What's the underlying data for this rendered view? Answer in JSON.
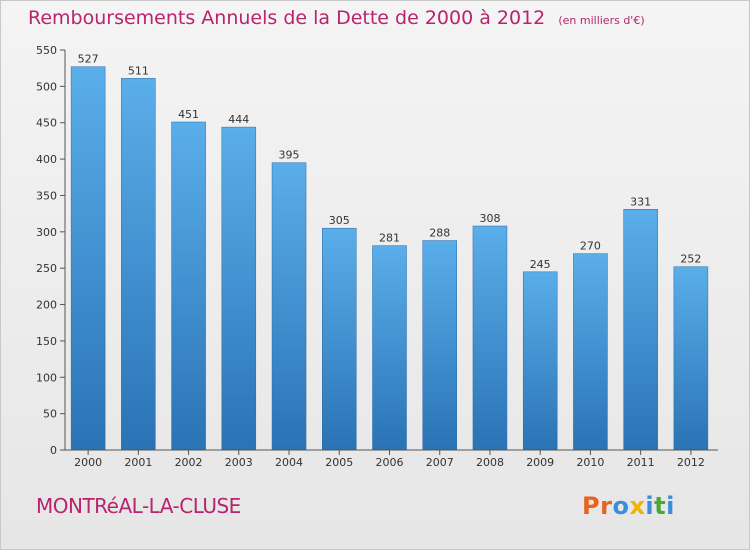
{
  "header": {
    "title": "Remboursements Annuels de la Dette de 2000 à 2012",
    "unit": "(en milliers d'€)"
  },
  "footer": {
    "city": "MONTRéAL-LA-CLUSE",
    "brand_letters": [
      "P",
      "r",
      "o",
      "x",
      "i",
      "t",
      "i"
    ]
  },
  "colors": {
    "bar_top": "#5aaeea",
    "bar_bottom": "#2a73b5",
    "title": "#b8246e",
    "brand": [
      "#e8641e",
      "#e8641e",
      "#3d8ed8",
      "#f0b400",
      "#3d8ed8",
      "#49a938",
      "#3d8ed8"
    ]
  },
  "chart_data": {
    "type": "bar",
    "categories": [
      "2000",
      "2001",
      "2002",
      "2003",
      "2004",
      "2005",
      "2006",
      "2007",
      "2008",
      "2009",
      "2010",
      "2011",
      "2012"
    ],
    "values": [
      527,
      511,
      451,
      444,
      395,
      305,
      281,
      288,
      308,
      245,
      270,
      331,
      252
    ],
    "title": "Remboursements Annuels de la Dette de 2000 à 2012",
    "xlabel": "",
    "ylabel": "",
    "ylim": [
      0,
      550
    ],
    "yticks": [
      0,
      50,
      100,
      150,
      200,
      250,
      300,
      350,
      400,
      450,
      500,
      550
    ],
    "grid": false,
    "data_labels": true
  }
}
